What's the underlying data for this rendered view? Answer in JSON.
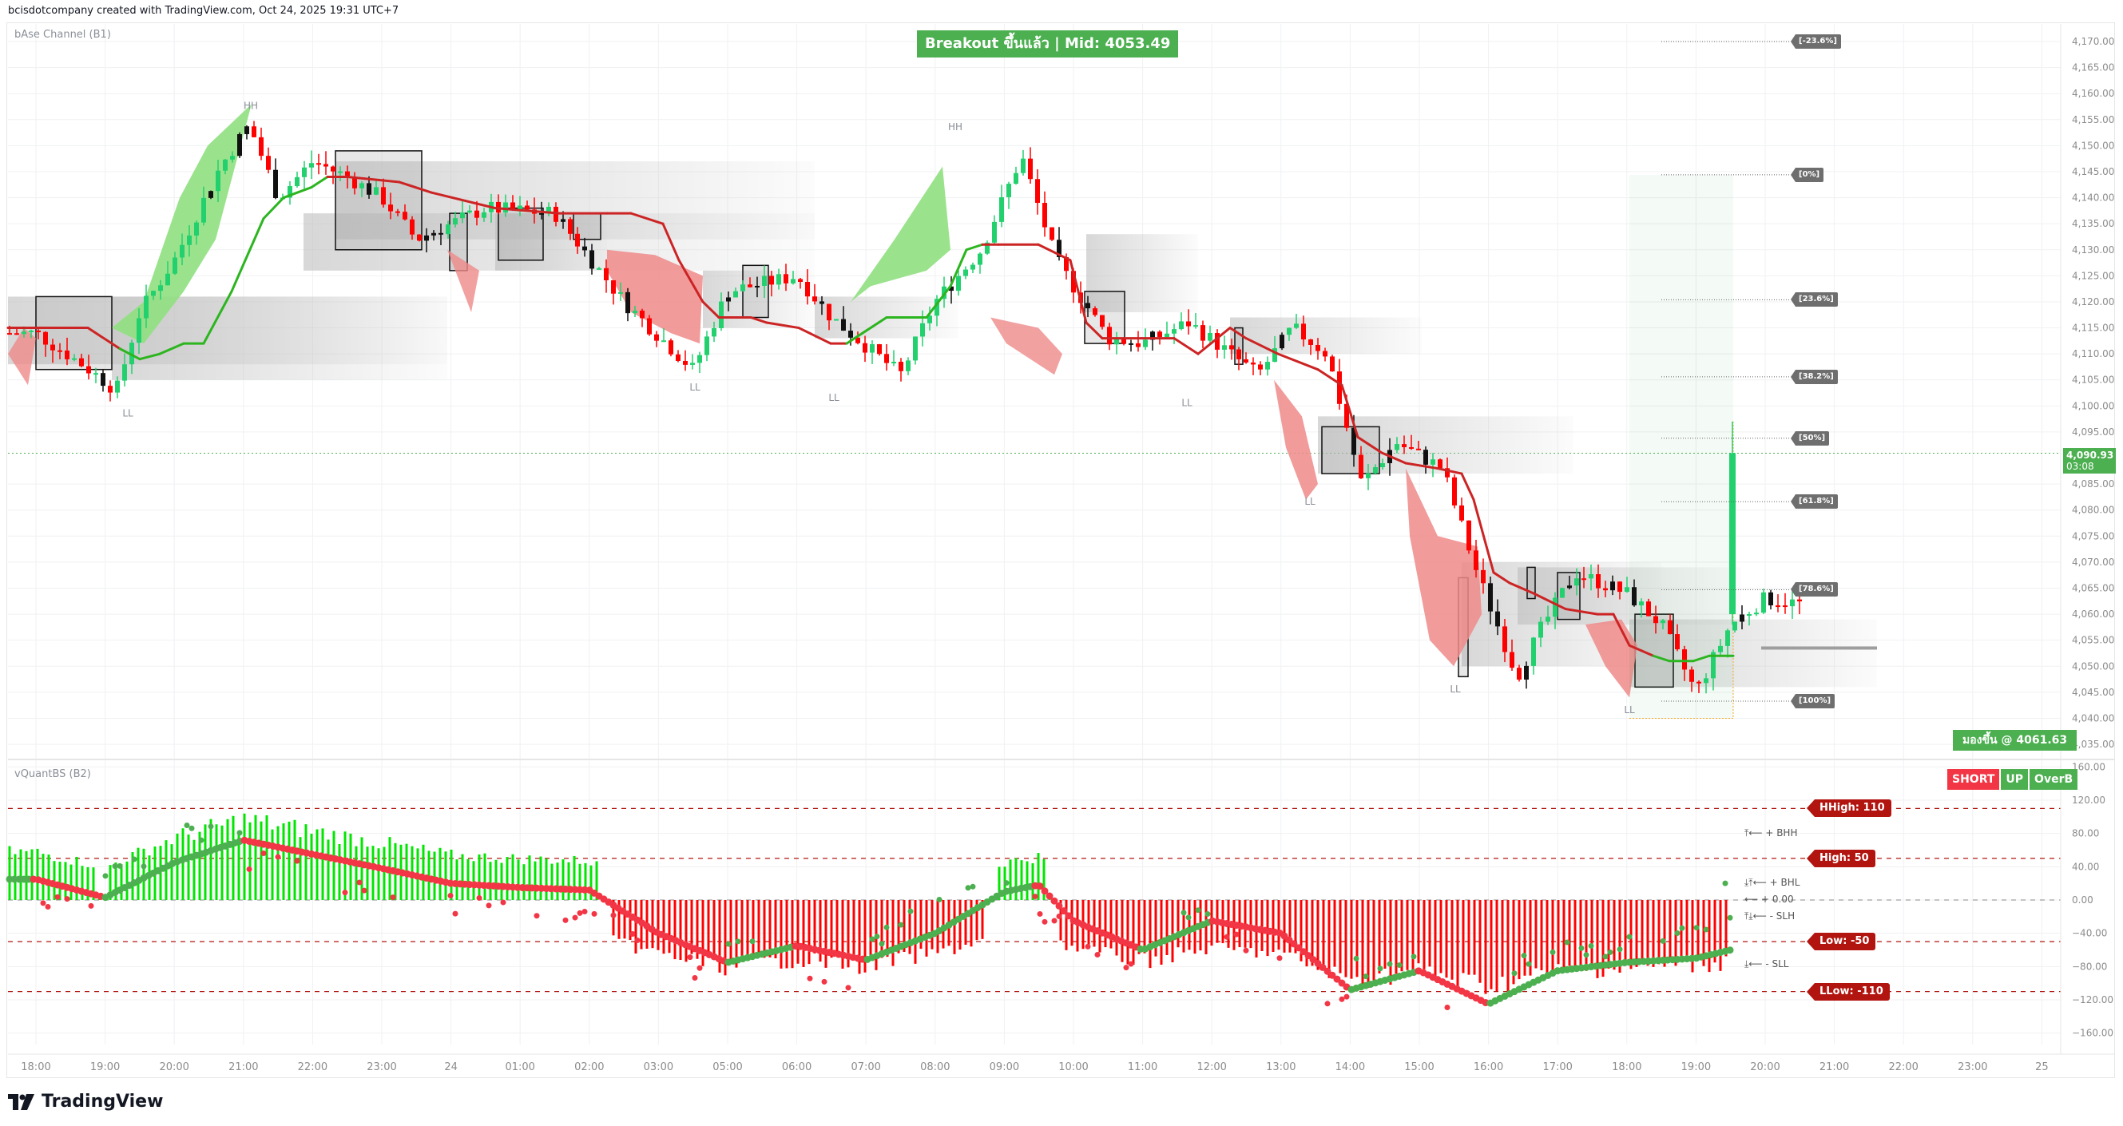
{
  "header": {
    "attribution": "bcisdotcompany created with TradingView.com, Oct 24, 2025 19:31 UTC+7"
  },
  "main_pane": {
    "indicator_label": "bAse Channel (B1)",
    "banner": "Breakout ขึ้นแล้ว | Mid: 4053.49",
    "lookup_badge": "มองขึ้น @ 4061.63",
    "last_price": "4,090.93",
    "countdown": "03:08",
    "price_ticks": [
      "4,170.00",
      "4,165.00",
      "4,160.00",
      "4,155.00",
      "4,150.00",
      "4,145.00",
      "4,140.00",
      "4,135.00",
      "4,130.00",
      "4,125.00",
      "4,120.00",
      "4,115.00",
      "4,110.00",
      "4,105.00",
      "4,100.00",
      "4,095.00",
      "4,085.00",
      "4,080.00",
      "4,075.00",
      "4,070.00",
      "4,065.00",
      "4,060.00",
      "4,055.00",
      "4,050.00",
      "4,045.00",
      "4,040.00",
      "4,035.00"
    ],
    "fib_levels": [
      {
        "label": "[-23.6%]",
        "price": 4170.0
      },
      {
        "label": "[0%]",
        "price": 4144.4
      },
      {
        "label": "[23.6%]",
        "price": 4120.4
      },
      {
        "label": "[38.2%]",
        "price": 4105.6
      },
      {
        "label": "[50%]",
        "price": 4093.8
      },
      {
        "label": "[61.8%]",
        "price": 4081.6
      },
      {
        "label": "[78.6%]",
        "price": 4064.7
      },
      {
        "label": "[100%]",
        "price": 4043.3
      }
    ],
    "swing_labels": [
      {
        "text": "HH",
        "time": "21:00"
      },
      {
        "text": "LL",
        "time": "19:00"
      },
      {
        "text": "LL",
        "time": "03:20"
      },
      {
        "text": "LL",
        "time": "06:30"
      },
      {
        "text": "HH",
        "time": "08:15"
      },
      {
        "text": "LL",
        "time": "11:45"
      },
      {
        "text": "LL",
        "time": "13:20"
      },
      {
        "text": "LL",
        "time": "15:25"
      },
      {
        "text": "LL",
        "time": "18:00"
      }
    ]
  },
  "osc_pane": {
    "indicator_label": "vQuantBS (B2)",
    "signals": [
      "SHORT",
      "UP",
      "OverB"
    ],
    "osc_ticks": [
      "160.00",
      "120.00",
      "80.00",
      "40.00",
      "0.00",
      "−40.00",
      "−80.00",
      "−120.00",
      "−160.00"
    ],
    "levels": [
      {
        "label": "HHigh: 110",
        "value": 110
      },
      {
        "label": "High: 50",
        "value": 50
      },
      {
        "label": "Low: -50",
        "value": -50
      },
      {
        "label": "LLow: -110",
        "value": -110
      }
    ],
    "legend_notes": [
      {
        "text": "⤒⟵ + BHH",
        "value": 80
      },
      {
        "text": "⤓⤒⟵ + BHL",
        "value": 20
      },
      {
        "text": "⟵ + 0.00",
        "value": 0
      },
      {
        "text": "⤒⤓⟵ - SLH",
        "value": -20
      },
      {
        "text": "⤓⟵ - SLL",
        "value": -78
      }
    ]
  },
  "time_axis": {
    "ticks": [
      "18:00",
      "19:00",
      "20:00",
      "21:00",
      "22:00",
      "23:00",
      "24",
      "01:00",
      "02:00",
      "03:00",
      "05:00",
      "06:00",
      "07:00",
      "08:00",
      "09:00",
      "10:00",
      "11:00",
      "12:00",
      "13:00",
      "14:00",
      "15:00",
      "16:00",
      "17:00",
      "18:00",
      "19:00",
      "20:00",
      "21:00",
      "22:00",
      "23:00",
      "25"
    ]
  },
  "footer": {
    "brand": "TradingView"
  },
  "colors": {
    "bull": "#22d06e",
    "bear": "#ff0000",
    "neutral_candle": "#111111",
    "channel_up": "#2cb51f",
    "channel_down": "#cc2424",
    "bull_fill": "#8fe07f",
    "bear_fill": "#ef8a8a",
    "banner_bg": "#4caf50",
    "short_bg": "#f23645",
    "level_tag": "#b2140f",
    "fib_tag": "#6e6e6e"
  },
  "chart_data": [
    {
      "type": "candlestick",
      "title": "bAse Channel (B1)",
      "ylabel": "Price",
      "ylim": [
        4032,
        4172
      ],
      "x_ticks": [
        "18:00",
        "19:00",
        "20:00",
        "21:00",
        "22:00",
        "23:00",
        "24",
        "01:00",
        "02:00",
        "03:00",
        "05:00",
        "06:00",
        "07:00",
        "08:00",
        "09:00",
        "10:00",
        "11:00",
        "12:00",
        "13:00",
        "14:00",
        "15:00",
        "16:00",
        "17:00",
        "18:00",
        "19:00"
      ],
      "approx_close_path": [
        {
          "t": "18:00",
          "price": 4114
        },
        {
          "t": "18:40",
          "price": 4108
        },
        {
          "t": "19:10",
          "price": 4103
        },
        {
          "t": "19:30",
          "price": 4118
        },
        {
          "t": "20:00",
          "price": 4128
        },
        {
          "t": "20:40",
          "price": 4146
        },
        {
          "t": "21:05",
          "price": 4154
        },
        {
          "t": "21:30",
          "price": 4140
        },
        {
          "t": "22:00",
          "price": 4147
        },
        {
          "t": "22:30",
          "price": 4144
        },
        {
          "t": "23:00",
          "price": 4140
        },
        {
          "t": "23:30",
          "price": 4132
        },
        {
          "t": "00:30",
          "price": 4138
        },
        {
          "t": "01:30",
          "price": 4137
        },
        {
          "t": "02:30",
          "price": 4120
        },
        {
          "t": "03:30",
          "price": 4107
        },
        {
          "t": "04:00",
          "price": 4122
        },
        {
          "t": "05:00",
          "price": 4125
        },
        {
          "t": "05:30",
          "price": 4117
        },
        {
          "t": "06:30",
          "price": 4106
        },
        {
          "t": "07:00",
          "price": 4120
        },
        {
          "t": "07:40",
          "price": 4130
        },
        {
          "t": "08:15",
          "price": 4148
        },
        {
          "t": "08:45",
          "price": 4128
        },
        {
          "t": "09:30",
          "price": 4113
        },
        {
          "t": "10:00",
          "price": 4112
        },
        {
          "t": "10:40",
          "price": 4116
        },
        {
          "t": "11:40",
          "price": 4106
        },
        {
          "t": "12:10",
          "price": 4115
        },
        {
          "t": "12:40",
          "price": 4110
        },
        {
          "t": "13:10",
          "price": 4085
        },
        {
          "t": "13:40",
          "price": 4093
        },
        {
          "t": "14:20",
          "price": 4088
        },
        {
          "t": "14:50",
          "price": 4068
        },
        {
          "t": "15:25",
          "price": 4048
        },
        {
          "t": "15:45",
          "price": 4057
        },
        {
          "t": "16:15",
          "price": 4068
        },
        {
          "t": "17:00",
          "price": 4064
        },
        {
          "t": "17:30",
          "price": 4058
        },
        {
          "t": "18:00",
          "price": 4045
        },
        {
          "t": "18:30",
          "price": 4058
        },
        {
          "t": "19:00",
          "price": 4063
        },
        {
          "t": "19:30",
          "price": 4062
        },
        {
          "t": "19:31",
          "price": 4090.93
        }
      ],
      "annotations": [
        "Breakout ขึ้นแล้ว | Mid: 4053.49",
        "มองขึ้น @ 4061.63",
        "HH",
        "LL"
      ]
    },
    {
      "type": "bar",
      "title": "vQuantBS (B2)",
      "ylabel": "",
      "ylim": [
        -165,
        165
      ],
      "reference_lines": [
        110,
        50,
        0,
        -50,
        -110
      ],
      "approx_signal_path": [
        {
          "t": "18:00",
          "value": 25
        },
        {
          "t": "19:00",
          "value": 3
        },
        {
          "t": "20:00",
          "value": 45
        },
        {
          "t": "21:00",
          "value": 72
        },
        {
          "t": "22:00",
          "value": 55
        },
        {
          "t": "23:00",
          "value": 38
        },
        {
          "t": "24",
          "value": 20
        },
        {
          "t": "01:00",
          "value": 15
        },
        {
          "t": "02:00",
          "value": 12
        },
        {
          "t": "03:00",
          "value": -40
        },
        {
          "t": "04:00",
          "value": -75
        },
        {
          "t": "05:00",
          "value": -55
        },
        {
          "t": "06:00",
          "value": -72
        },
        {
          "t": "07:00",
          "value": -40
        },
        {
          "t": "08:00",
          "value": 10
        },
        {
          "t": "08:30",
          "value": 18
        },
        {
          "t": "09:00",
          "value": -25
        },
        {
          "t": "10:00",
          "value": -60
        },
        {
          "t": "11:00",
          "value": -25
        },
        {
          "t": "12:00",
          "value": -40
        },
        {
          "t": "13:00",
          "value": -108
        },
        {
          "t": "14:00",
          "value": -85
        },
        {
          "t": "15:00",
          "value": -125
        },
        {
          "t": "16:00",
          "value": -85
        },
        {
          "t": "17:00",
          "value": -75
        },
        {
          "t": "18:00",
          "value": -70
        },
        {
          "t": "19:00",
          "value": -50
        },
        {
          "t": "19:31",
          "value": -35
        }
      ]
    }
  ]
}
